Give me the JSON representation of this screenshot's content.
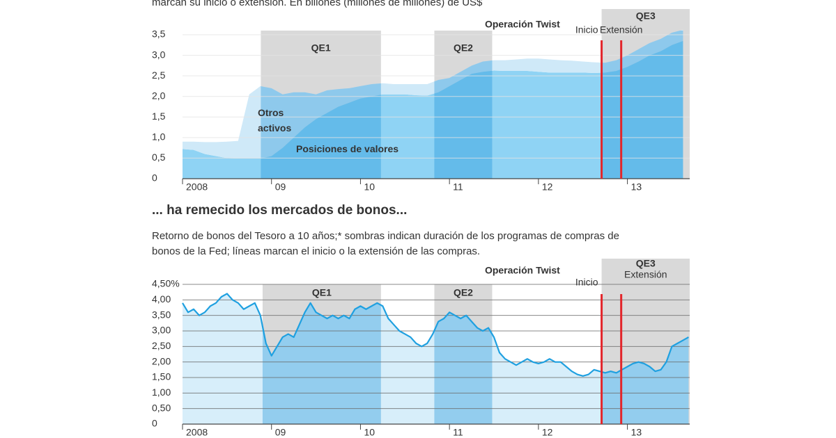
{
  "chart_data": [
    {
      "type": "stacked-area",
      "subtitle": "marcan su inicio o extensión. En billones (millones de millones) de US$",
      "x": [
        2008,
        2008.125,
        2008.25,
        2008.375,
        2008.5,
        2008.625,
        2008.75,
        2008.875,
        2009,
        2009.125,
        2009.25,
        2009.375,
        2009.5,
        2009.625,
        2009.75,
        2009.875,
        2010,
        2010.125,
        2010.25,
        2010.375,
        2010.5,
        2010.625,
        2010.75,
        2010.875,
        2011,
        2011.125,
        2011.25,
        2011.375,
        2011.5,
        2011.625,
        2011.75,
        2011.875,
        2012,
        2012.125,
        2012.25,
        2012.375,
        2012.5,
        2012.625,
        2012.75,
        2012.875,
        2013,
        2013.125,
        2013.25,
        2013.375,
        2013.5,
        2013.625
      ],
      "series": [
        {
          "name": "Posiciones de valores",
          "color": "#8fd3f4",
          "values": [
            0.72,
            0.7,
            0.6,
            0.55,
            0.5,
            0.49,
            0.49,
            0.49,
            0.55,
            0.75,
            1.0,
            1.25,
            1.45,
            1.6,
            1.75,
            1.85,
            1.95,
            2.0,
            2.05,
            2.05,
            2.05,
            2.03,
            2.02,
            2.1,
            2.25,
            2.4,
            2.55,
            2.6,
            2.63,
            2.62,
            2.62,
            2.62,
            2.6,
            2.58,
            2.58,
            2.58,
            2.58,
            2.57,
            2.58,
            2.62,
            2.72,
            2.85,
            3.0,
            3.1,
            3.25,
            3.35
          ]
        },
        {
          "name": "Otros activos",
          "color": "#cfe9f8",
          "values": [
            0.18,
            0.2,
            0.29,
            0.34,
            0.4,
            0.43,
            1.56,
            1.76,
            1.65,
            1.3,
            1.1,
            0.85,
            0.6,
            0.55,
            0.43,
            0.35,
            0.3,
            0.3,
            0.27,
            0.25,
            0.25,
            0.27,
            0.28,
            0.3,
            0.2,
            0.2,
            0.2,
            0.25,
            0.25,
            0.26,
            0.28,
            0.3,
            0.32,
            0.32,
            0.3,
            0.29,
            0.27,
            0.26,
            0.24,
            0.26,
            0.28,
            0.3,
            0.3,
            0.3,
            0.3,
            0.27
          ]
        }
      ],
      "xlim": [
        2008,
        2013.7
      ],
      "xticks": [
        2008,
        {
          "value": 2009,
          "label": "09"
        },
        {
          "value": 2010,
          "label": "10"
        },
        {
          "value": 2011,
          "label": "11"
        },
        {
          "value": 2012,
          "label": "12"
        },
        {
          "value": 2013,
          "label": "13"
        }
      ],
      "ylim": [
        0,
        3.5
      ],
      "yticks": [
        0,
        {
          "value": 0.5,
          "label": "0,5"
        },
        {
          "value": 1,
          "label": "1,0"
        },
        {
          "value": 1.5,
          "label": "1,5"
        },
        {
          "value": 2,
          "label": "2,0"
        },
        {
          "value": 2.5,
          "label": "2,5"
        },
        {
          "value": 3,
          "label": "3,0"
        },
        {
          "value": 3.5,
          "label": "3,5"
        }
      ],
      "grid": true,
      "grid_color": "#e4e4e4",
      "region_color": "#d9d9d9",
      "regions": [
        {
          "label": "QE1",
          "start": 2008.88,
          "end": 2010.23
        },
        {
          "label": "QE2",
          "start": 2010.83,
          "end": 2011.48
        },
        {
          "label": "QE3",
          "start": 2012.71,
          "end": 2013.7
        }
      ],
      "annotations": [
        {
          "text": "Operación Twist",
          "x": 2011.82
        }
      ],
      "events": [
        {
          "label": "Inicio",
          "x": 2012.71,
          "color": "#e3262b"
        },
        {
          "label": "Extensión",
          "x": 2012.93,
          "color": "#e3262b"
        }
      ]
    },
    {
      "type": "line",
      "title": "... ha remecido los mercados de bonos...",
      "subtitle": [
        "Retorno de bonos del Tesoro a 10 años;* sombras indican duración de los programas de compras de",
        "bonos de la Fed; líneas marcan el inicio o la extensión de las compras."
      ],
      "x": [
        2008,
        2008.0625,
        2008.125,
        2008.1875,
        2008.25,
        2008.3125,
        2008.375,
        2008.4375,
        2008.5,
        2008.5625,
        2008.625,
        2008.6875,
        2008.75,
        2008.8125,
        2008.875,
        2008.9375,
        2009,
        2009.0625,
        2009.125,
        2009.1875,
        2009.25,
        2009.3125,
        2009.375,
        2009.4375,
        2009.5,
        2009.5625,
        2009.625,
        2009.6875,
        2009.75,
        2009.8125,
        2009.875,
        2009.9375,
        2010,
        2010.0625,
        2010.125,
        2010.1875,
        2010.25,
        2010.3125,
        2010.375,
        2010.4375,
        2010.5,
        2010.5625,
        2010.625,
        2010.6875,
        2010.75,
        2010.8125,
        2010.875,
        2010.9375,
        2011,
        2011.0625,
        2011.125,
        2011.1875,
        2011.25,
        2011.3125,
        2011.375,
        2011.4375,
        2011.5,
        2011.5625,
        2011.625,
        2011.6875,
        2011.75,
        2011.8125,
        2011.875,
        2011.9375,
        2012,
        2012.0625,
        2012.125,
        2012.1875,
        2012.25,
        2012.3125,
        2012.375,
        2012.4375,
        2012.5,
        2012.5625,
        2012.625,
        2012.6875,
        2012.75,
        2012.8125,
        2012.875,
        2012.9375,
        2013,
        2013.0625,
        2013.125,
        2013.1875,
        2013.25,
        2013.3125,
        2013.375,
        2013.4375,
        2013.5,
        2013.5625,
        2013.625,
        2013.6875
      ],
      "values": [
        3.9,
        3.6,
        3.7,
        3.5,
        3.6,
        3.8,
        3.9,
        4.1,
        4.2,
        4.0,
        3.9,
        3.7,
        3.8,
        3.9,
        3.5,
        2.6,
        2.2,
        2.5,
        2.8,
        2.9,
        2.8,
        3.2,
        3.6,
        3.9,
        3.6,
        3.5,
        3.4,
        3.5,
        3.4,
        3.5,
        3.4,
        3.7,
        3.8,
        3.7,
        3.8,
        3.9,
        3.8,
        3.4,
        3.2,
        3.0,
        2.9,
        2.8,
        2.6,
        2.5,
        2.6,
        2.9,
        3.3,
        3.4,
        3.6,
        3.5,
        3.4,
        3.5,
        3.3,
        3.1,
        3.0,
        3.1,
        2.8,
        2.3,
        2.1,
        2.0,
        1.9,
        2.0,
        2.1,
        2.0,
        1.95,
        2.0,
        2.1,
        2.0,
        2.0,
        1.85,
        1.7,
        1.6,
        1.55,
        1.6,
        1.75,
        1.7,
        1.65,
        1.7,
        1.65,
        1.75,
        1.85,
        1.95,
        2.0,
        1.95,
        1.85,
        1.7,
        1.75,
        2.0,
        2.5,
        2.6,
        2.7,
        2.8
      ],
      "color": "#1fa0e0",
      "area_color": "#d7eefa",
      "xlim": [
        2008,
        2013.7
      ],
      "xticks": [
        2008,
        {
          "value": 2009,
          "label": "09"
        },
        {
          "value": 2010,
          "label": "10"
        },
        {
          "value": 2011,
          "label": "11"
        },
        {
          "value": 2012,
          "label": "12"
        },
        {
          "value": 2013,
          "label": "13"
        }
      ],
      "ylim": [
        0,
        4.5
      ],
      "yticks": [
        0,
        {
          "value": 0.5,
          "label": "0,50"
        },
        {
          "value": 1,
          "label": "1,00"
        },
        {
          "value": 1.5,
          "label": "1,50"
        },
        {
          "value": 2,
          "label": "2,00"
        },
        {
          "value": 2.5,
          "label": "2,50"
        },
        {
          "value": 3,
          "label": "3,00"
        },
        {
          "value": 3.5,
          "label": "3,50"
        },
        {
          "value": 4,
          "label": "4,00"
        },
        {
          "value": 4.5,
          "label": "4,50%"
        }
      ],
      "grid": true,
      "grid_color": "#6a6a6a",
      "region_color": "#d9d9d9",
      "regions": [
        {
          "label": "QE1",
          "start": 2008.9,
          "end": 2010.23
        },
        {
          "label": "QE2",
          "start": 2010.83,
          "end": 2011.48
        },
        {
          "label": "QE3",
          "start": 2012.71,
          "end": 2013.7
        }
      ],
      "annotations": [
        {
          "text": "Operación Twist",
          "x": 2011.82
        }
      ],
      "events": [
        {
          "label": "Inicio",
          "x": 2012.71,
          "color": "#e3262b"
        },
        {
          "label": "Extensión",
          "x": 2012.93,
          "color": "#e3262b"
        }
      ]
    }
  ]
}
